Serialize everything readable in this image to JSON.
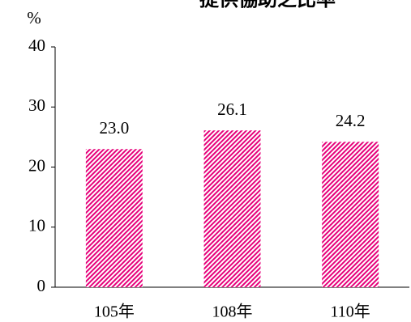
{
  "chart_data": {
    "type": "bar",
    "title": "提供協助之比率",
    "y_unit": "%",
    "categories": [
      "105年",
      "108年",
      "110年"
    ],
    "values": [
      23.0,
      26.1,
      24.2
    ],
    "value_labels": [
      "23.0",
      "26.1",
      "24.2"
    ],
    "color": "#e6007a",
    "ylim": [
      0,
      40
    ],
    "yticks": [
      0,
      10,
      20,
      30,
      40
    ],
    "grid": false
  }
}
